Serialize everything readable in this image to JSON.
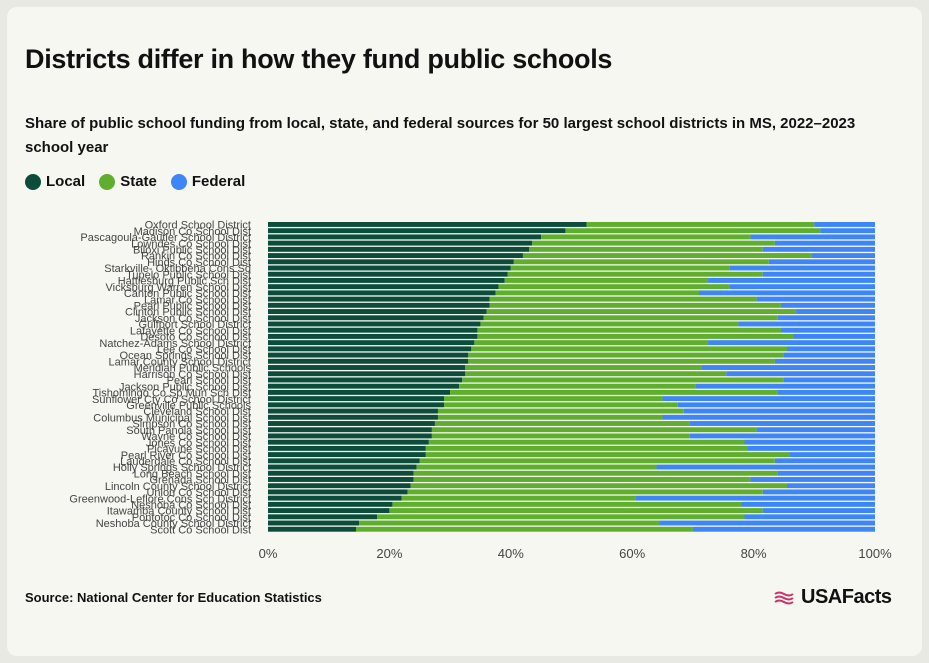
{
  "header": {
    "title": "Districts differ in how they fund public schools",
    "subtitle": "Share of public school funding from local, state, and federal sources for 50 largest school districts in MS, 2022–2023 school year"
  },
  "legend": [
    {
      "label": "Local",
      "color": "#0b4d3a"
    },
    {
      "label": "State",
      "color": "#5fae2e"
    },
    {
      "label": "Federal",
      "color": "#3e86f5"
    }
  ],
  "footer": {
    "source": "Source: National Center for Education Statistics",
    "brand": "USAFacts",
    "brand_icon": "flag-icon"
  },
  "chart_data": {
    "type": "bar",
    "orientation": "horizontal",
    "stacked": true,
    "xlim": [
      0,
      100
    ],
    "x_ticks": [
      "0%",
      "20%",
      "40%",
      "60%",
      "80%",
      "100%"
    ],
    "categories": [
      "Oxford School District",
      "Madison Co School Dist",
      "Pascagoula-Gautier School District",
      "Lowndes Co School Dist",
      "Biloxi Public School Dist",
      "Rankin Co School Dist",
      "Hinds Co School Dist",
      "Starkville- Oktibbeha Cons Sd",
      "Tupelo Public School Dist",
      "Hattiesburg Public Sch Dist",
      "Vicksburg Warren School Dist",
      "Canton Public School Dist",
      "Lamar Co School Dist",
      "Pearl Public School Dist",
      "Clinton Public School Dist",
      "Jackson Co School Dist",
      "Gulfport School District",
      "Lafayette Co School Dist",
      "Desoto Co School Dist",
      "Natchez-Adams School District",
      "Lee Co School Dist",
      "Ocean Springs School Dist",
      "Lamar County School District",
      "Meridian Public Schools",
      "Harrison Co School Dist",
      "Pearl School Dist",
      "Jackson Public School Dist",
      "Tishomingo Co Sp Mun Sch Dist",
      "Sunflower Cty Co School District",
      "Greenville Public Schools",
      "Cleveland School Dist",
      "Columbus Municipal School Dist",
      "Simpson Co School Dist",
      "South Panola School Dist",
      "Wayne Co School Dist",
      "Jones Co School Dist",
      "Picayune School Dist",
      "Pearl River Co School Dist",
      "Lauderdale Co School Dist",
      "Holly Springs School District",
      "Long Beach School Dist",
      "Grenada School Dist",
      "Lincoln County School District",
      "Union Co School Dist",
      "Greenwood-Leflore Cons Sch District",
      "Neshoba Co School Dist",
      "Itawamba County School Dist",
      "Pontotoc Co School Dist",
      "Neshoba County School District",
      "Scott Co School Dist"
    ],
    "series": [
      {
        "name": "Local",
        "color": "#0b4d3a",
        "values": [
          52.5,
          49,
          45,
          43.5,
          43,
          42,
          40.5,
          40,
          39.5,
          39,
          38,
          37.5,
          36.5,
          36.5,
          36,
          35.5,
          35,
          34.5,
          34.5,
          34,
          33.5,
          33,
          33,
          32.5,
          32.5,
          32,
          31.5,
          30,
          29,
          29,
          28,
          28,
          27.5,
          27,
          27,
          26.5,
          26,
          26,
          25,
          24.5,
          24,
          24,
          23.5,
          23,
          22,
          20.5,
          20,
          18,
          15,
          14.5
        ]
      },
      {
        "name": "State",
        "color": "#5fae2e",
        "values": [
          37.5,
          42,
          34.5,
          40,
          38.5,
          47.5,
          42,
          36,
          42,
          33.5,
          38,
          33.5,
          44,
          48,
          51,
          48.5,
          42.5,
          50,
          52,
          38.5,
          52,
          52,
          50.5,
          39,
          43,
          53,
          39,
          54,
          36,
          38.5,
          40.5,
          37,
          42,
          53.5,
          42.5,
          52,
          53,
          60,
          58.5,
          39.5,
          60,
          55.5,
          62,
          58.5,
          38.5,
          57.5,
          61.5,
          60.5,
          49.5,
          55.5
        ]
      },
      {
        "name": "Federal",
        "color": "#3e86f5",
        "values": [
          10,
          9,
          20.5,
          16.5,
          18.5,
          10.5,
          17.5,
          24,
          18.5,
          27.5,
          24,
          29,
          19.5,
          15.5,
          13,
          16,
          22.5,
          15.5,
          13.5,
          27.5,
          14.5,
          15,
          16.5,
          28.5,
          24.5,
          15,
          29.5,
          16,
          35,
          32.5,
          31.5,
          35,
          30.5,
          19.5,
          30.5,
          21.5,
          21,
          14,
          16.5,
          36,
          16,
          20.5,
          14.5,
          18.5,
          39.5,
          22,
          18.5,
          21.5,
          35.5,
          30
        ]
      }
    ]
  }
}
